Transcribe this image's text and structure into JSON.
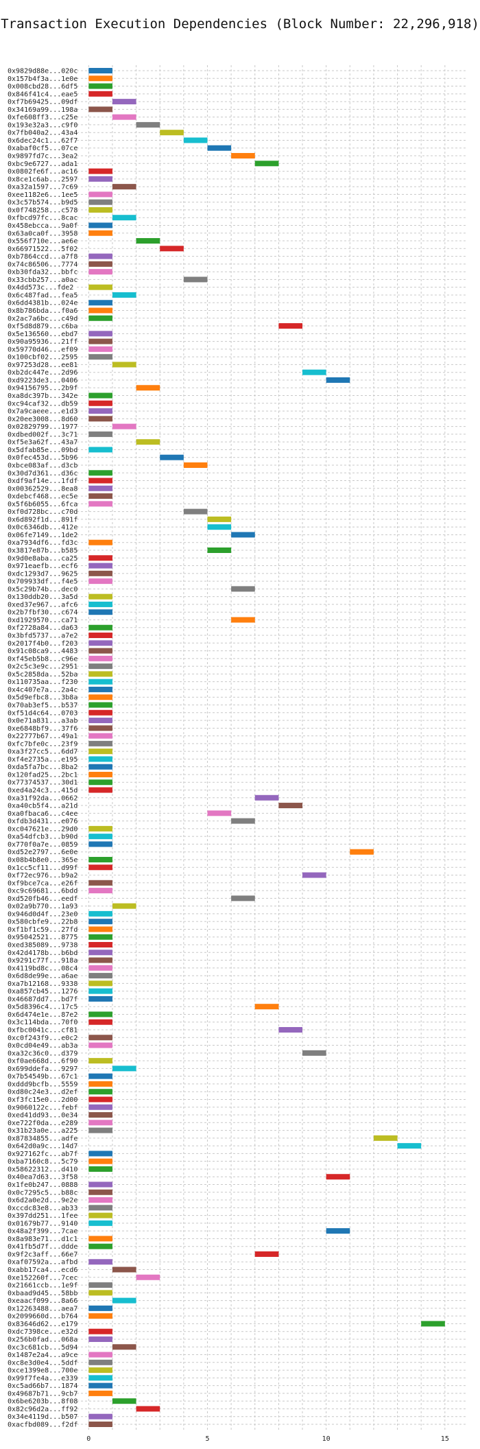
{
  "chart_data": {
    "type": "bar",
    "orientation": "horizontal",
    "title": "Transaction Execution Dependencies (Block Number: 22,296,918)",
    "xlabel": "",
    "ylabel": "",
    "xlim": [
      -0.5,
      15.9
    ],
    "xticks": [
      0,
      5,
      10,
      15
    ],
    "grid": true,
    "palette": [
      "#1f77b4",
      "#ff7f0e",
      "#2ca02c",
      "#d62728",
      "#9467bd",
      "#8c564b",
      "#e377c2",
      "#7f7f7f",
      "#bcbd22",
      "#17becf"
    ],
    "transactions": [
      {
        "label": "0x9829d88e...020c",
        "start": 0,
        "end": 1
      },
      {
        "label": "0x157b4f3a...1e0e",
        "start": 0,
        "end": 1
      },
      {
        "label": "0x008cbd28...6df5",
        "start": 0,
        "end": 1
      },
      {
        "label": "0x846f41c4...eae5",
        "start": 0,
        "end": 1
      },
      {
        "label": "0xf7b69425...09df",
        "start": 1,
        "end": 2
      },
      {
        "label": "0x34169a99...198a",
        "start": 0,
        "end": 1
      },
      {
        "label": "0xfe608ff3...c25e",
        "start": 1,
        "end": 2
      },
      {
        "label": "0x193e32a3...c9f0",
        "start": 2,
        "end": 3
      },
      {
        "label": "0x7fb040a2...43a4",
        "start": 3,
        "end": 4
      },
      {
        "label": "0x6dec24c1...62f7",
        "start": 4,
        "end": 5
      },
      {
        "label": "0xabaf0cf5...07ce",
        "start": 5,
        "end": 6
      },
      {
        "label": "0x9897fd7c...3ea2",
        "start": 6,
        "end": 7
      },
      {
        "label": "0xbc9e6727...ada1",
        "start": 7,
        "end": 8
      },
      {
        "label": "0x0802fe6f...ac16",
        "start": 0,
        "end": 1
      },
      {
        "label": "0x8ce1c6ab...2597",
        "start": 0,
        "end": 1
      },
      {
        "label": "0xa32a1597...7c69",
        "start": 1,
        "end": 2
      },
      {
        "label": "0xee1182e6...1ee5",
        "start": 0,
        "end": 1
      },
      {
        "label": "0x3c57b574...b9d5",
        "start": 0,
        "end": 1
      },
      {
        "label": "0x0f748258...c578",
        "start": 0,
        "end": 1
      },
      {
        "label": "0xfbcd97fc...8cac",
        "start": 1,
        "end": 2
      },
      {
        "label": "0x458ebcca...9a0f",
        "start": 0,
        "end": 1
      },
      {
        "label": "0x63a0ca0f...3958",
        "start": 0,
        "end": 1
      },
      {
        "label": "0x556f710e...ae6e",
        "start": 2,
        "end": 3
      },
      {
        "label": "0x66971522...5f02",
        "start": 3,
        "end": 4
      },
      {
        "label": "0xb7864ccd...a7f8",
        "start": 0,
        "end": 1
      },
      {
        "label": "0x74c86506...7774",
        "start": 0,
        "end": 1
      },
      {
        "label": "0xb30fda32...bbfc",
        "start": 0,
        "end": 1
      },
      {
        "label": "0x33cbb257...a0ac",
        "start": 4,
        "end": 5
      },
      {
        "label": "0x4dd573c...fde2",
        "start": 0,
        "end": 1
      },
      {
        "label": "0x6c487fad...fea5",
        "start": 1,
        "end": 2
      },
      {
        "label": "0x6dd4381b...024e",
        "start": 0,
        "end": 1
      },
      {
        "label": "0x8b786bda...f0a6",
        "start": 0,
        "end": 1
      },
      {
        "label": "0x2ac7a6bc...c49d",
        "start": 0,
        "end": 1
      },
      {
        "label": "0xf5d8d879...c6ba",
        "start": 8,
        "end": 9
      },
      {
        "label": "0x5e136560...ebd7",
        "start": 0,
        "end": 1
      },
      {
        "label": "0x90a95936...21ff",
        "start": 0,
        "end": 1
      },
      {
        "label": "0x59770d46...ef09",
        "start": 0,
        "end": 1
      },
      {
        "label": "0x100cbf02...2595",
        "start": 0,
        "end": 1
      },
      {
        "label": "0x97253d28...ee81",
        "start": 1,
        "end": 2
      },
      {
        "label": "0xb2dc447e...2d96",
        "start": 9,
        "end": 10
      },
      {
        "label": "0xd9223de3...0406",
        "start": 10,
        "end": 11
      },
      {
        "label": "0x94156795...2b9f",
        "start": 2,
        "end": 3
      },
      {
        "label": "0xa8dc397b...342e",
        "start": 0,
        "end": 1
      },
      {
        "label": "0xc94caf32...db59",
        "start": 0,
        "end": 1
      },
      {
        "label": "0x7a9caeee...e1d3",
        "start": 0,
        "end": 1
      },
      {
        "label": "0x20ee3008...8d60",
        "start": 0,
        "end": 1
      },
      {
        "label": "0x02829799...1977",
        "start": 1,
        "end": 2
      },
      {
        "label": "0xdbed002f...3c71",
        "start": 0,
        "end": 1
      },
      {
        "label": "0xf5e3a62f...43a7",
        "start": 2,
        "end": 3
      },
      {
        "label": "0x5dfab85e...09bd",
        "start": 0,
        "end": 1
      },
      {
        "label": "0x0fec453d...5b96",
        "start": 3,
        "end": 4
      },
      {
        "label": "0xbce083af...d3cb",
        "start": 4,
        "end": 5
      },
      {
        "label": "0x30d7d361...d36c",
        "start": 0,
        "end": 1
      },
      {
        "label": "0xdf9af14e...1fdf",
        "start": 0,
        "end": 1
      },
      {
        "label": "0x00362529...8ea8",
        "start": 0,
        "end": 1
      },
      {
        "label": "0xdebcf468...ec5e",
        "start": 0,
        "end": 1
      },
      {
        "label": "0x5f6b6055...6fca",
        "start": 0,
        "end": 1
      },
      {
        "label": "0xf0d728bc...c70d",
        "start": 4,
        "end": 5
      },
      {
        "label": "0x6d892f1d...891f",
        "start": 5,
        "end": 6
      },
      {
        "label": "0x0c6346db...412e",
        "start": 5,
        "end": 6
      },
      {
        "label": "0x06fe7149...1de2",
        "start": 6,
        "end": 7
      },
      {
        "label": "0xa7934df6...fd3c",
        "start": 0,
        "end": 1
      },
      {
        "label": "0x3817e87b...b585",
        "start": 5,
        "end": 6
      },
      {
        "label": "0x9d0e8aba...ca25",
        "start": 0,
        "end": 1
      },
      {
        "label": "0x971eaefb...ecf6",
        "start": 0,
        "end": 1
      },
      {
        "label": "0xdc1293d7...9625",
        "start": 0,
        "end": 1
      },
      {
        "label": "0x709933df...f4e5",
        "start": 0,
        "end": 1
      },
      {
        "label": "0x5c29b74b...dec0",
        "start": 6,
        "end": 7
      },
      {
        "label": "0x130ddb20...3a5d",
        "start": 0,
        "end": 1
      },
      {
        "label": "0xed37e967...afc6",
        "start": 0,
        "end": 1
      },
      {
        "label": "0x2b7fbf30...c674",
        "start": 0,
        "end": 1
      },
      {
        "label": "0xd1929570...ca71",
        "start": 6,
        "end": 7
      },
      {
        "label": "0xf2728a84...da63",
        "start": 0,
        "end": 1
      },
      {
        "label": "0x3bfd5737...a7e2",
        "start": 0,
        "end": 1
      },
      {
        "label": "0x2017f4b0...f203",
        "start": 0,
        "end": 1
      },
      {
        "label": "0x91c08ca9...4483",
        "start": 0,
        "end": 1
      },
      {
        "label": "0xf45eb5b8...c96e",
        "start": 0,
        "end": 1
      },
      {
        "label": "0x2c5c3e9c...2951",
        "start": 0,
        "end": 1
      },
      {
        "label": "0x5c2858da...52ba",
        "start": 0,
        "end": 1
      },
      {
        "label": "0x110735aa...f230",
        "start": 0,
        "end": 1
      },
      {
        "label": "0x4c407e7a...2a4c",
        "start": 0,
        "end": 1
      },
      {
        "label": "0x5d9efbc8...3b8a",
        "start": 0,
        "end": 1
      },
      {
        "label": "0x70ab3ef5...b537",
        "start": 0,
        "end": 1
      },
      {
        "label": "0xf51d4c64...0703",
        "start": 0,
        "end": 1
      },
      {
        "label": "0x0e71a831...a3ab",
        "start": 0,
        "end": 1
      },
      {
        "label": "0xe6848bf9...37f6",
        "start": 0,
        "end": 1
      },
      {
        "label": "0x22777b67...49a1",
        "start": 0,
        "end": 1
      },
      {
        "label": "0xfc7bfe0c...23f9",
        "start": 0,
        "end": 1
      },
      {
        "label": "0xa3f27cc5...6dd7",
        "start": 0,
        "end": 1
      },
      {
        "label": "0xf4e2735a...e195",
        "start": 0,
        "end": 1
      },
      {
        "label": "0xda5fa7bc...8ba2",
        "start": 0,
        "end": 1
      },
      {
        "label": "0x120fad25...2bc1",
        "start": 0,
        "end": 1
      },
      {
        "label": "0x77374537...30d1",
        "start": 0,
        "end": 1
      },
      {
        "label": "0xed4a24c3...415d",
        "start": 0,
        "end": 1
      },
      {
        "label": "0xa31f92da...0662",
        "start": 7,
        "end": 8
      },
      {
        "label": "0xa40cb5f4...a21d",
        "start": 8,
        "end": 9
      },
      {
        "label": "0xa0fbaca6...c4ee",
        "start": 5,
        "end": 6
      },
      {
        "label": "0xfdb3d431...e076",
        "start": 6,
        "end": 7
      },
      {
        "label": "0xc047621e...29d0",
        "start": 0,
        "end": 1
      },
      {
        "label": "0xa54dfcb3...b90d",
        "start": 0,
        "end": 1
      },
      {
        "label": "0x770f0a7e...0859",
        "start": 0,
        "end": 1
      },
      {
        "label": "0xd52e2797...6e0e",
        "start": 11,
        "end": 12
      },
      {
        "label": "0x08b4b8e0...365e",
        "start": 0,
        "end": 1
      },
      {
        "label": "0x1cc5cf11...d99f",
        "start": 0,
        "end": 1
      },
      {
        "label": "0xf72ec976...b9a2",
        "start": 9,
        "end": 10
      },
      {
        "label": "0xf9bce7ca...e26f",
        "start": 0,
        "end": 1
      },
      {
        "label": "0xc9c69681...6bdd",
        "start": 0,
        "end": 1
      },
      {
        "label": "0xd520fb46...eedf",
        "start": 6,
        "end": 7
      },
      {
        "label": "0x02a9b770...1a93",
        "start": 1,
        "end": 2
      },
      {
        "label": "0x946d0d4f...23e0",
        "start": 0,
        "end": 1
      },
      {
        "label": "0x580cbfe9...22b8",
        "start": 0,
        "end": 1
      },
      {
        "label": "0xf1bf1c59...27fd",
        "start": 0,
        "end": 1
      },
      {
        "label": "0x95042521...8775",
        "start": 0,
        "end": 1
      },
      {
        "label": "0xed385089...9738",
        "start": 0,
        "end": 1
      },
      {
        "label": "0x42d4178b...b6bd",
        "start": 0,
        "end": 1
      },
      {
        "label": "0x9291c77f...918a",
        "start": 0,
        "end": 1
      },
      {
        "label": "0x4119bd8c...08c4",
        "start": 0,
        "end": 1
      },
      {
        "label": "0x6d8de99e...a6ae",
        "start": 0,
        "end": 1
      },
      {
        "label": "0xa7b12168...9338",
        "start": 0,
        "end": 1
      },
      {
        "label": "0xa857cb45...1276",
        "start": 0,
        "end": 1
      },
      {
        "label": "0x46687dd7...bd7f",
        "start": 0,
        "end": 1
      },
      {
        "label": "0x5d8396c4...17c5",
        "start": 7,
        "end": 8
      },
      {
        "label": "0x6d474e1e...87e2",
        "start": 0,
        "end": 1
      },
      {
        "label": "0x3c114bda...70f0",
        "start": 0,
        "end": 1
      },
      {
        "label": "0xfbc0041c...cf81",
        "start": 8,
        "end": 9
      },
      {
        "label": "0xc0f243f9...e0c2",
        "start": 0,
        "end": 1
      },
      {
        "label": "0x0cd04e49...ab3a",
        "start": 0,
        "end": 1
      },
      {
        "label": "0xa32c36c0...d379",
        "start": 9,
        "end": 10
      },
      {
        "label": "0xf0ae668d...6f90",
        "start": 0,
        "end": 1
      },
      {
        "label": "0x699ddefa...9297",
        "start": 1,
        "end": 2
      },
      {
        "label": "0x7b54549b...67c1",
        "start": 0,
        "end": 1
      },
      {
        "label": "0xddd9bcfb...5559",
        "start": 0,
        "end": 1
      },
      {
        "label": "0xd80c24e3...d2ef",
        "start": 0,
        "end": 1
      },
      {
        "label": "0xf3fc15e0...2d00",
        "start": 0,
        "end": 1
      },
      {
        "label": "0x9060122c...febf",
        "start": 0,
        "end": 1
      },
      {
        "label": "0xed41dd93...0e34",
        "start": 0,
        "end": 1
      },
      {
        "label": "0xe722f0da...e289",
        "start": 0,
        "end": 1
      },
      {
        "label": "0x31b23a0e...a225",
        "start": 0,
        "end": 1
      },
      {
        "label": "0x87834855...adfe",
        "start": 12,
        "end": 13
      },
      {
        "label": "0x642d0a9c...14d7",
        "start": 13,
        "end": 14
      },
      {
        "label": "0x927162fc...ab7f",
        "start": 0,
        "end": 1
      },
      {
        "label": "0xba7160c8...5c79",
        "start": 0,
        "end": 1
      },
      {
        "label": "0x58622312...d410",
        "start": 0,
        "end": 1
      },
      {
        "label": "0x40ea7d63...3f58",
        "start": 10,
        "end": 11
      },
      {
        "label": "0x1fe0b247...0888",
        "start": 0,
        "end": 1
      },
      {
        "label": "0x0c7295c5...b88c",
        "start": 0,
        "end": 1
      },
      {
        "label": "0x6d2a0e2d...9e2e",
        "start": 0,
        "end": 1
      },
      {
        "label": "0xccdc83e8...ab33",
        "start": 0,
        "end": 1
      },
      {
        "label": "0x397dd251...1fee",
        "start": 0,
        "end": 1
      },
      {
        "label": "0x01679b77...9140",
        "start": 0,
        "end": 1
      },
      {
        "label": "0x48a2f399...7cae",
        "start": 10,
        "end": 11
      },
      {
        "label": "0x8a983e71...d1c1",
        "start": 0,
        "end": 1
      },
      {
        "label": "0x41fb5d7f...ddde",
        "start": 0,
        "end": 1
      },
      {
        "label": "0x9f2c3aff...66e7",
        "start": 7,
        "end": 8
      },
      {
        "label": "0xaf07592a...afbd",
        "start": 0,
        "end": 1
      },
      {
        "label": "0xabb17ca4...ecd6",
        "start": 1,
        "end": 2
      },
      {
        "label": "0xe152260f...7cec",
        "start": 2,
        "end": 3
      },
      {
        "label": "0x21661ccb...1e9f",
        "start": 0,
        "end": 1
      },
      {
        "label": "0xbaad9d45...58bb",
        "start": 0,
        "end": 1
      },
      {
        "label": "0xeaacf099...8a66",
        "start": 1,
        "end": 2
      },
      {
        "label": "0x12263488...aea7",
        "start": 0,
        "end": 1
      },
      {
        "label": "0x2099660d...b764",
        "start": 0,
        "end": 1
      },
      {
        "label": "0x83646d62...e179",
        "start": 14,
        "end": 15
      },
      {
        "label": "0xdc7398ce...e32d",
        "start": 0,
        "end": 1
      },
      {
        "label": "0x256b0fad...068a",
        "start": 0,
        "end": 1
      },
      {
        "label": "0xc3c681cb...5d94",
        "start": 1,
        "end": 2
      },
      {
        "label": "0x1487e2a4...a9ce",
        "start": 0,
        "end": 1
      },
      {
        "label": "0xc8e3d0e4...5ddf",
        "start": 0,
        "end": 1
      },
      {
        "label": "0xce1399e8...700e",
        "start": 0,
        "end": 1
      },
      {
        "label": "0x99f7fe4a...e339",
        "start": 0,
        "end": 1
      },
      {
        "label": "0xc5ad66b7...1874",
        "start": 0,
        "end": 1
      },
      {
        "label": "0x49687b71...9cb7",
        "start": 0,
        "end": 1
      },
      {
        "label": "0x6be6203b...8f08",
        "start": 1,
        "end": 2
      },
      {
        "label": "0x82c96d2a...ff92",
        "start": 2,
        "end": 3
      },
      {
        "label": "0x34e4119d...b507",
        "start": 0,
        "end": 1
      },
      {
        "label": "0xacfbd089...f2df",
        "start": 0,
        "end": 1
      }
    ]
  }
}
